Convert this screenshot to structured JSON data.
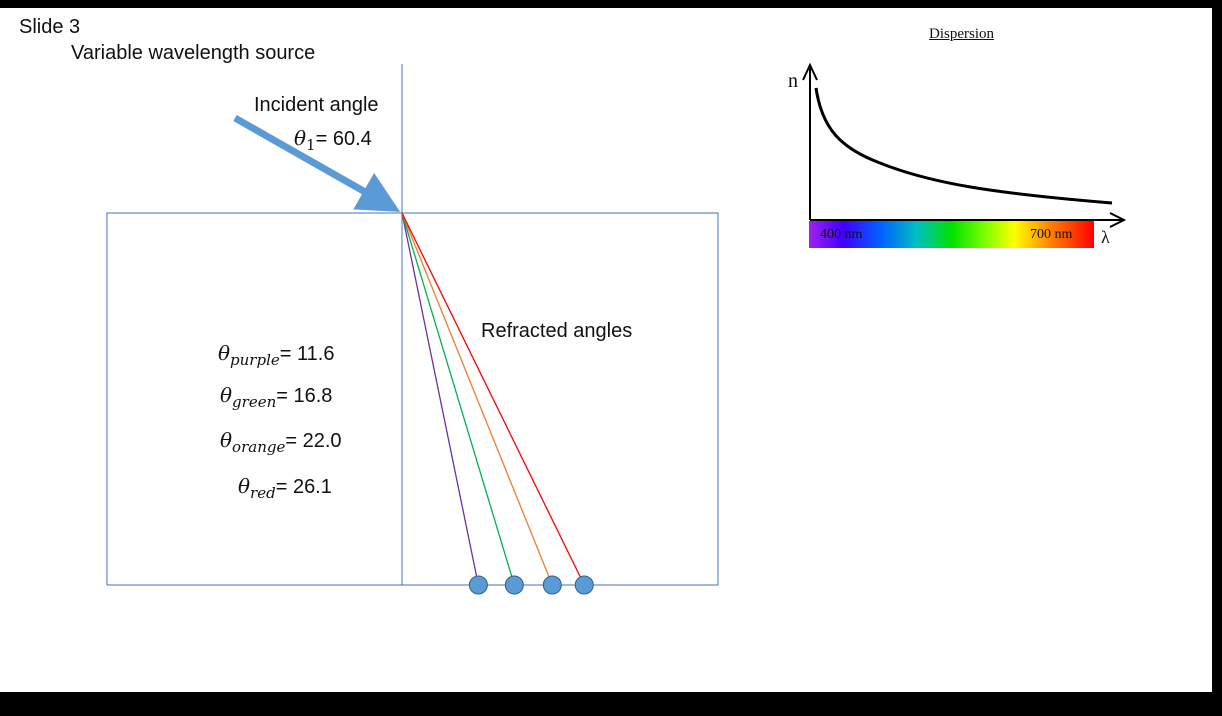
{
  "slide": {
    "title": "Slide 3",
    "subtitle": "Variable wavelength source"
  },
  "incident": {
    "label": "Incident angle",
    "symbol": "θ",
    "subscript": "1",
    "value": "= 60.4"
  },
  "refracted": {
    "label": "Refracted angles",
    "rays": [
      {
        "name": "purple",
        "value": "= 11.6",
        "color": "#7030a0",
        "angle": 11.6
      },
      {
        "name": "green",
        "value": "= 16.8",
        "color": "#00b050",
        "angle": 16.8
      },
      {
        "name": "orange",
        "value": "= 22.0",
        "color": "#ed7d31",
        "angle": 22.0
      },
      {
        "name": "red",
        "value": "= 26.1",
        "color": "#ff0000",
        "angle": 26.1
      }
    ]
  },
  "dispersion": {
    "title": "Dispersion",
    "y_axis": "n",
    "x_axis": "λ",
    "tick_low": "400 nm",
    "tick_high": "700 nm"
  },
  "colors": {
    "incident_arrow": "#5b9bd5",
    "block_border": "#4472c4",
    "dots": "#5b9bd5",
    "dot_border": "#2e5f8e"
  }
}
